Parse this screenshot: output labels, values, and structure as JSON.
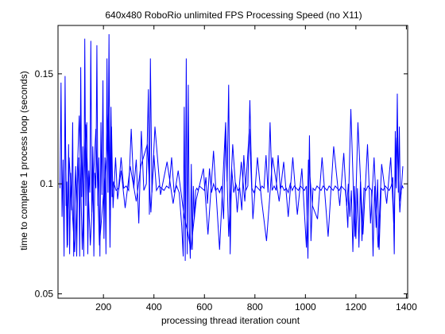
{
  "chart_data": {
    "type": "line",
    "title": "640x480 RoboRio unlimited FPS Processing Speed (no X11)",
    "xlabel": "processing thread iteration count",
    "ylabel": "time to complete 1 process loop (seconds)",
    "xlim": [
      20,
      1405
    ],
    "ylim": [
      0.048,
      0.172
    ],
    "x_ticks": [
      200,
      400,
      600,
      800,
      1000,
      1200,
      1400
    ],
    "y_ticks": [
      0.05,
      0.1,
      0.15
    ],
    "x_tick_labels": [
      "200",
      "400",
      "600",
      "800",
      "1000",
      "1200",
      "1400"
    ],
    "y_tick_labels": [
      "0.05",
      "0.1",
      "0.15"
    ],
    "grid": false,
    "legend": "none",
    "series": [
      {
        "color": "#0000ff",
        "x": [
          28,
          32,
          36,
          40,
          44,
          48,
          52,
          55,
          58,
          62,
          66,
          70,
          74,
          78,
          82,
          86,
          90,
          94,
          98,
          102,
          106,
          110,
          114,
          118,
          122,
          126,
          130,
          134,
          138,
          142,
          146,
          150,
          154,
          158,
          162,
          166,
          170,
          174,
          178,
          182,
          186,
          190,
          194,
          198,
          202,
          206,
          210,
          214,
          218,
          222,
          226,
          230,
          234,
          240,
          250,
          260,
          270,
          280,
          290,
          300,
          310,
          320,
          330,
          340,
          350,
          360,
          370,
          378,
          382,
          386,
          392,
          400,
          410,
          420,
          430,
          440,
          450,
          460,
          470,
          480,
          490,
          500,
          510,
          516,
          520,
          524,
          528,
          532,
          536,
          540,
          544,
          548,
          552,
          556,
          560,
          565,
          570,
          575,
          580,
          590,
          600,
          606,
          612,
          620,
          628,
          636,
          644,
          652,
          660,
          668,
          676,
          684,
          690,
          696,
          702,
          708,
          716,
          724,
          732,
          740,
          748,
          756,
          764,
          772,
          780,
          788,
          796,
          804,
          812,
          820,
          828,
          836,
          844,
          852,
          860,
          868,
          876,
          884,
          892,
          900,
          908,
          916,
          924,
          932,
          940,
          948,
          956,
          964,
          972,
          980,
          988,
          996,
          1004,
          1010,
          1016,
          1022,
          1030,
          1038,
          1046,
          1054,
          1062,
          1070,
          1078,
          1086,
          1094,
          1102,
          1110,
          1118,
          1126,
          1134,
          1142,
          1150,
          1158,
          1164,
          1170,
          1176,
          1182,
          1188,
          1194,
          1200,
          1206,
          1212,
          1218,
          1224,
          1232,
          1240,
          1248,
          1256,
          1262,
          1268,
          1274,
          1280,
          1286,
          1292,
          1300,
          1308,
          1316,
          1324,
          1332,
          1340,
          1346,
          1352,
          1356,
          1360,
          1364,
          1368,
          1372,
          1376,
          1380,
          1384,
          1388
        ],
        "y": [
          0.098,
          0.146,
          0.085,
          0.111,
          0.067,
          0.149,
          0.09,
          0.101,
          0.072,
          0.118,
          0.068,
          0.105,
          0.088,
          0.128,
          0.067,
          0.097,
          0.108,
          0.067,
          0.099,
          0.112,
          0.067,
          0.153,
          0.094,
          0.117,
          0.067,
          0.166,
          0.09,
          0.128,
          0.068,
          0.106,
          0.096,
          0.165,
          0.087,
          0.117,
          0.067,
          0.105,
          0.098,
          0.163,
          0.09,
          0.112,
          0.067,
          0.128,
          0.095,
          0.147,
          0.075,
          0.112,
          0.068,
          0.157,
          0.096,
          0.168,
          0.088,
          0.135,
          0.094,
          0.101,
          0.097,
          0.098,
          0.112,
          0.098,
          0.099,
          0.097,
          0.125,
          0.098,
          0.111,
          0.082,
          0.124,
          0.097,
          0.1,
          0.143,
          0.086,
          0.157,
          0.096,
          0.113,
          0.097,
          0.099,
          0.098,
          0.097,
          0.099,
          0.098,
          0.112,
          0.096,
          0.099,
          0.096,
          0.081,
          0.067,
          0.135,
          0.065,
          0.157,
          0.068,
          0.145,
          0.08,
          0.066,
          0.109,
          0.07,
          0.099,
          0.084,
          0.097,
          0.098,
          0.097,
          0.099,
          0.098,
          0.097,
          0.103,
          0.091,
          0.107,
          0.096,
          0.1,
          0.097,
          0.098,
          0.096,
          0.099,
          0.084,
          0.124,
          0.101,
          0.145,
          0.068,
          0.107,
          0.096,
          0.1,
          0.097,
          0.098,
          0.088,
          0.113,
          0.097,
          0.099,
          0.138,
          0.098,
          0.096,
          0.099,
          0.098,
          0.097,
          0.099,
          0.098,
          0.113,
          0.096,
          0.128,
          0.097,
          0.099,
          0.097,
          0.113,
          0.098,
          0.099,
          0.097,
          0.098,
          0.096,
          0.1,
          0.097,
          0.099,
          0.098,
          0.097,
          0.099,
          0.098,
          0.097,
          0.099,
          0.066,
          0.122,
          0.074,
          0.098,
          0.097,
          0.099,
          0.098,
          0.097,
          0.099,
          0.098,
          0.097,
          0.099,
          0.098,
          0.097,
          0.099,
          0.098,
          0.097,
          0.099,
          0.098,
          0.097,
          0.09,
          0.1,
          0.085,
          0.097,
          0.069,
          0.099,
          0.075,
          0.098,
          0.071,
          0.101,
          0.074,
          0.098,
          0.097,
          0.099,
          0.098,
          0.097,
          0.067,
          0.099,
          0.08,
          0.102,
          0.07,
          0.098,
          0.097,
          0.099,
          0.098,
          0.097,
          0.099,
          0.103,
          0.068,
          0.124,
          0.098,
          0.141,
          0.096,
          0.126,
          0.092,
          0.097,
          0.099,
          0.098
        ]
      },
      {
        "color": "#0000ff",
        "x": [
          48,
          56,
          64,
          86,
          104,
          116,
          130,
          148,
          170,
          184,
          212,
          220,
          226,
          232,
          238,
          248,
          256,
          270,
          286,
          306,
          330,
          348,
          374,
          388,
          404,
          426,
          452,
          476,
          496,
          520,
          534,
          546,
          568,
          596,
          614,
          636,
          660,
          684,
          696,
          712,
          730,
          746,
          760,
          778,
          792,
          810,
          826,
          846,
          870,
          896,
          914,
          932,
          950,
          968,
          986,
          1004,
          1012,
          1028,
          1048,
          1066,
          1090,
          1112,
          1136,
          1152,
          1168,
          1180,
          1196,
          1208,
          1228,
          1246,
          1258,
          1272,
          1288,
          1302,
          1322,
          1338,
          1350,
          1362,
          1374,
          1386
        ],
        "y": [
          0.132,
          0.071,
          0.112,
          0.069,
          0.131,
          0.07,
          0.127,
          0.072,
          0.125,
          0.072,
          0.112,
          0.132,
          0.071,
          0.126,
          0.089,
          0.112,
          0.093,
          0.106,
          0.089,
          0.108,
          0.092,
          0.108,
          0.118,
          0.087,
          0.126,
          0.095,
          0.11,
          0.091,
          0.106,
          0.085,
          0.078,
          0.07,
          0.093,
          0.107,
          0.077,
          0.115,
          0.07,
          0.128,
          0.076,
          0.118,
          0.087,
          0.11,
          0.092,
          0.125,
          0.084,
          0.112,
          0.093,
          0.074,
          0.112,
          0.092,
          0.11,
          0.085,
          0.112,
          0.086,
          0.107,
          0.071,
          0.111,
          0.09,
          0.084,
          0.112,
          0.076,
          0.117,
          0.09,
          0.114,
          0.08,
          0.134,
          0.076,
          0.128,
          0.077,
          0.118,
          0.082,
          0.112,
          0.071,
          0.109,
          0.091,
          0.112,
          0.082,
          0.121,
          0.087,
          0.108
        ]
      }
    ]
  }
}
